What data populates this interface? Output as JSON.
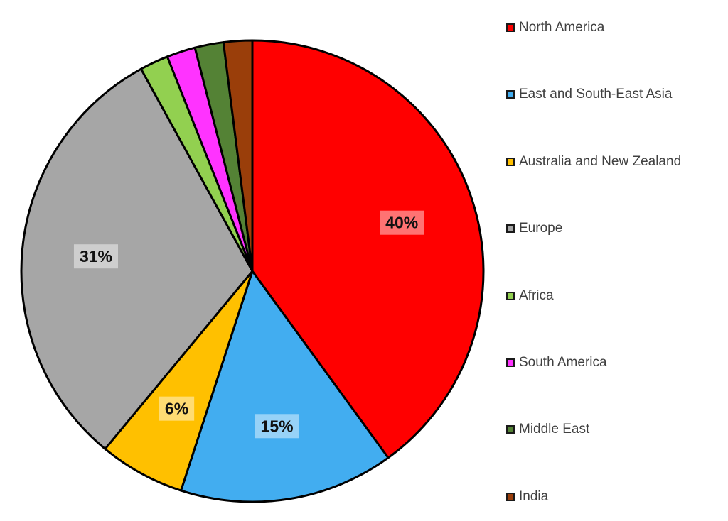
{
  "chart_data": {
    "type": "pie",
    "title": "",
    "categories": [
      "North America",
      "East and South-East Asia",
      "Australia and New Zealand",
      "Europe",
      "Africa",
      "South America",
      "Middle East",
      "India"
    ],
    "values": [
      40,
      15,
      6,
      31,
      2,
      2,
      2,
      2
    ],
    "value_labels": [
      "40%",
      "15%",
      "6%",
      "31%",
      "",
      "",
      "",
      ""
    ],
    "colors": [
      "#ff0000",
      "#42adf0",
      "#ffc000",
      "#a6a6a6",
      "#92d050",
      "#ff33ff",
      "#548235",
      "#9a3e0a"
    ],
    "legend_position": "right",
    "start_angle": "12 o'clock",
    "direction": "clockwise"
  }
}
